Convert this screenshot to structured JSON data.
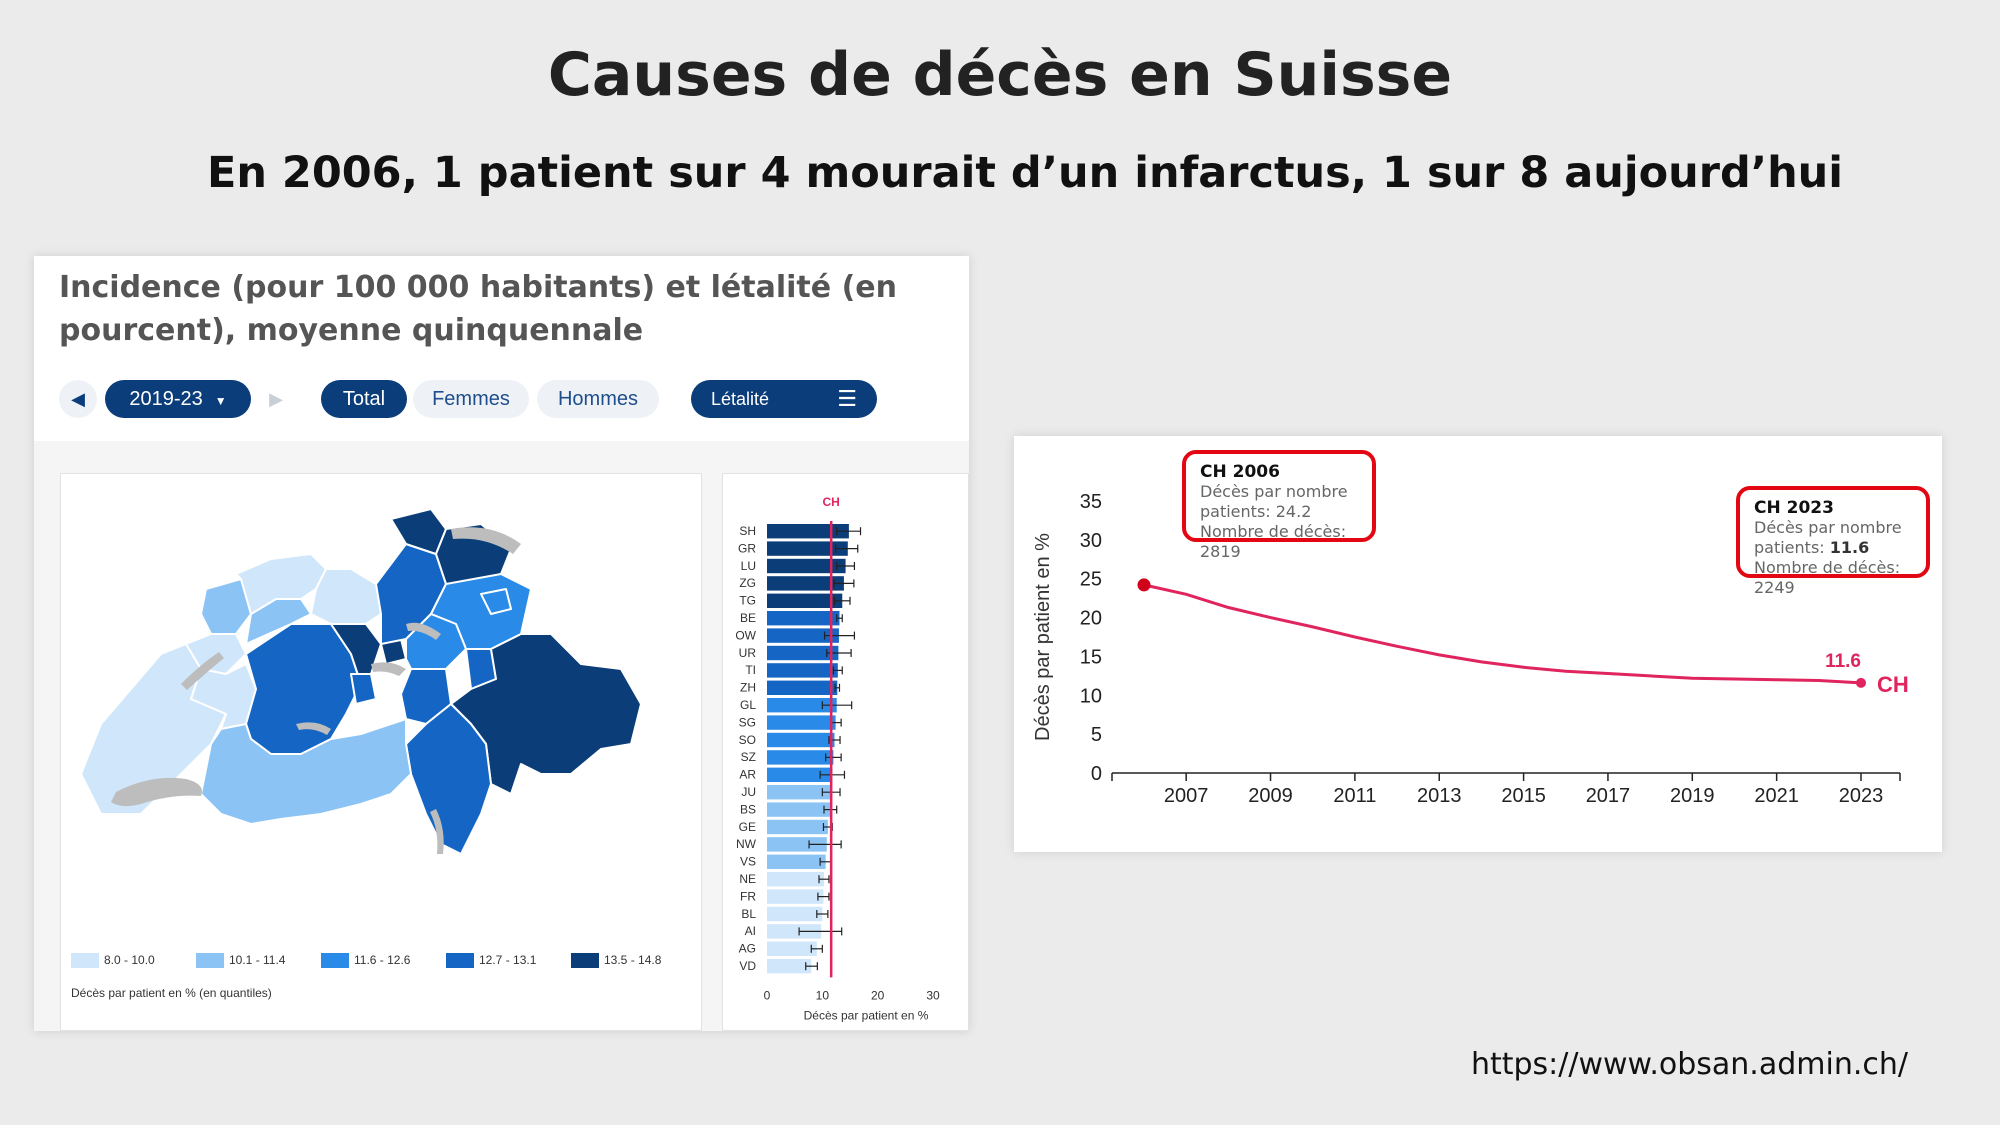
{
  "header": {
    "title": "Causes de décès en Suisse",
    "subtitle": "En 2006, 1 patient sur 4 mourait d’un infarctus, 1 sur 8 aujourd’hui"
  },
  "source_url": "https://www.obsan.admin.ch/",
  "left_panel": {
    "title": "Incidence (pour 100 000 habitants) et létalité (en pourcent), moyenne quinquennale",
    "controls": {
      "prev_icon": "triangle-left-icon",
      "period": "2019-23",
      "next_icon": "triangle-right-icon",
      "sex_tabs": [
        "Total",
        "Femmes",
        "Hommes"
      ],
      "active_tab": "Total",
      "metric": "Létalité",
      "menu_icon": "hamburger-icon"
    },
    "colors": {
      "q1": "#cfe6fb",
      "q2": "#8cc3f5",
      "q3": "#2a8ae8",
      "q4": "#1565c4",
      "q5": "#0b3d78",
      "lakes": "#bdbdbd",
      "ch_line": "#e0245e"
    },
    "map_legend": {
      "classes": [
        "8.0 - 10.0",
        "10.1 - 11.4",
        "11.6 - 12.6",
        "12.7 - 13.1",
        "13.5 - 14.8"
      ],
      "caption": "Décès par patient en % (en quantiles)"
    }
  },
  "chart_data": [
    {
      "type": "bar",
      "orientation": "horizontal",
      "reference_label": "CH",
      "reference_value": 11.6,
      "categories": [
        "SH",
        "GR",
        "LU",
        "ZG",
        "TG",
        "BE",
        "OW",
        "UR",
        "TI",
        "ZH",
        "GL",
        "SG",
        "SO",
        "SZ",
        "AR",
        "JU",
        "BS",
        "GE",
        "NW",
        "VS",
        "NE",
        "FR",
        "BL",
        "AI",
        "AG",
        "VD"
      ],
      "values": [
        14.8,
        14.6,
        14.2,
        13.9,
        13.6,
        13.1,
        13.0,
        12.9,
        12.8,
        12.7,
        12.6,
        12.4,
        12.2,
        12.0,
        11.8,
        11.6,
        11.4,
        11.0,
        10.8,
        10.6,
        10.3,
        10.2,
        10.0,
        9.8,
        9.0,
        8.0
      ],
      "ci_low": [
        12.6,
        12.4,
        12.6,
        12.1,
        12.2,
        12.6,
        10.4,
        10.8,
        12.0,
        12.3,
        10.0,
        11.5,
        11.2,
        10.6,
        9.6,
        10.0,
        10.3,
        10.2,
        7.6,
        9.6,
        9.4,
        9.2,
        9.0,
        5.8,
        8.0,
        7.0
      ],
      "ci_high": [
        16.9,
        16.4,
        15.8,
        15.7,
        15.0,
        13.6,
        15.8,
        15.2,
        13.6,
        13.1,
        15.3,
        13.4,
        13.2,
        13.4,
        14.0,
        13.2,
        12.6,
        11.8,
        13.4,
        11.6,
        11.2,
        11.2,
        11.0,
        13.5,
        10.0,
        9.1
      ],
      "xlim": [
        0,
        30
      ],
      "xticks": [
        0,
        10,
        20,
        30
      ],
      "xlabel": "Décès par patient en %"
    },
    {
      "type": "line",
      "x": [
        2006,
        2007,
        2008,
        2009,
        2010,
        2011,
        2012,
        2013,
        2014,
        2015,
        2016,
        2017,
        2018,
        2019,
        2020,
        2021,
        2022,
        2023
      ],
      "series": [
        {
          "name": "CH",
          "values": [
            24.2,
            23.0,
            21.3,
            20.0,
            18.8,
            17.5,
            16.3,
            15.2,
            14.3,
            13.6,
            13.1,
            12.8,
            12.5,
            12.2,
            12.1,
            12.0,
            11.9,
            11.6
          ]
        }
      ],
      "xticks": [
        2007,
        2009,
        2011,
        2013,
        2015,
        2017,
        2019,
        2021,
        2023
      ],
      "ylim": [
        0,
        35
      ],
      "yticks": [
        0,
        5,
        10,
        15,
        20,
        25,
        30,
        35
      ],
      "ylabel": "Décès par patient en %",
      "end_label": "11.6",
      "line_color": "#e0245e",
      "annotations": [
        {
          "title": "CH 2006",
          "line1": "Décès par nombre",
          "line2_prefix": "patients: ",
          "line2_value": "24.2",
          "line3": "Nombre de décès:",
          "line4": "2819",
          "bold_value": false
        },
        {
          "title": "CH 2023",
          "line1": "Décès par nombre",
          "line2_prefix": "patients: ",
          "line2_value": "11.6",
          "line3": "Nombre de décès:",
          "line4": "2249",
          "bold_value": true
        }
      ]
    }
  ]
}
